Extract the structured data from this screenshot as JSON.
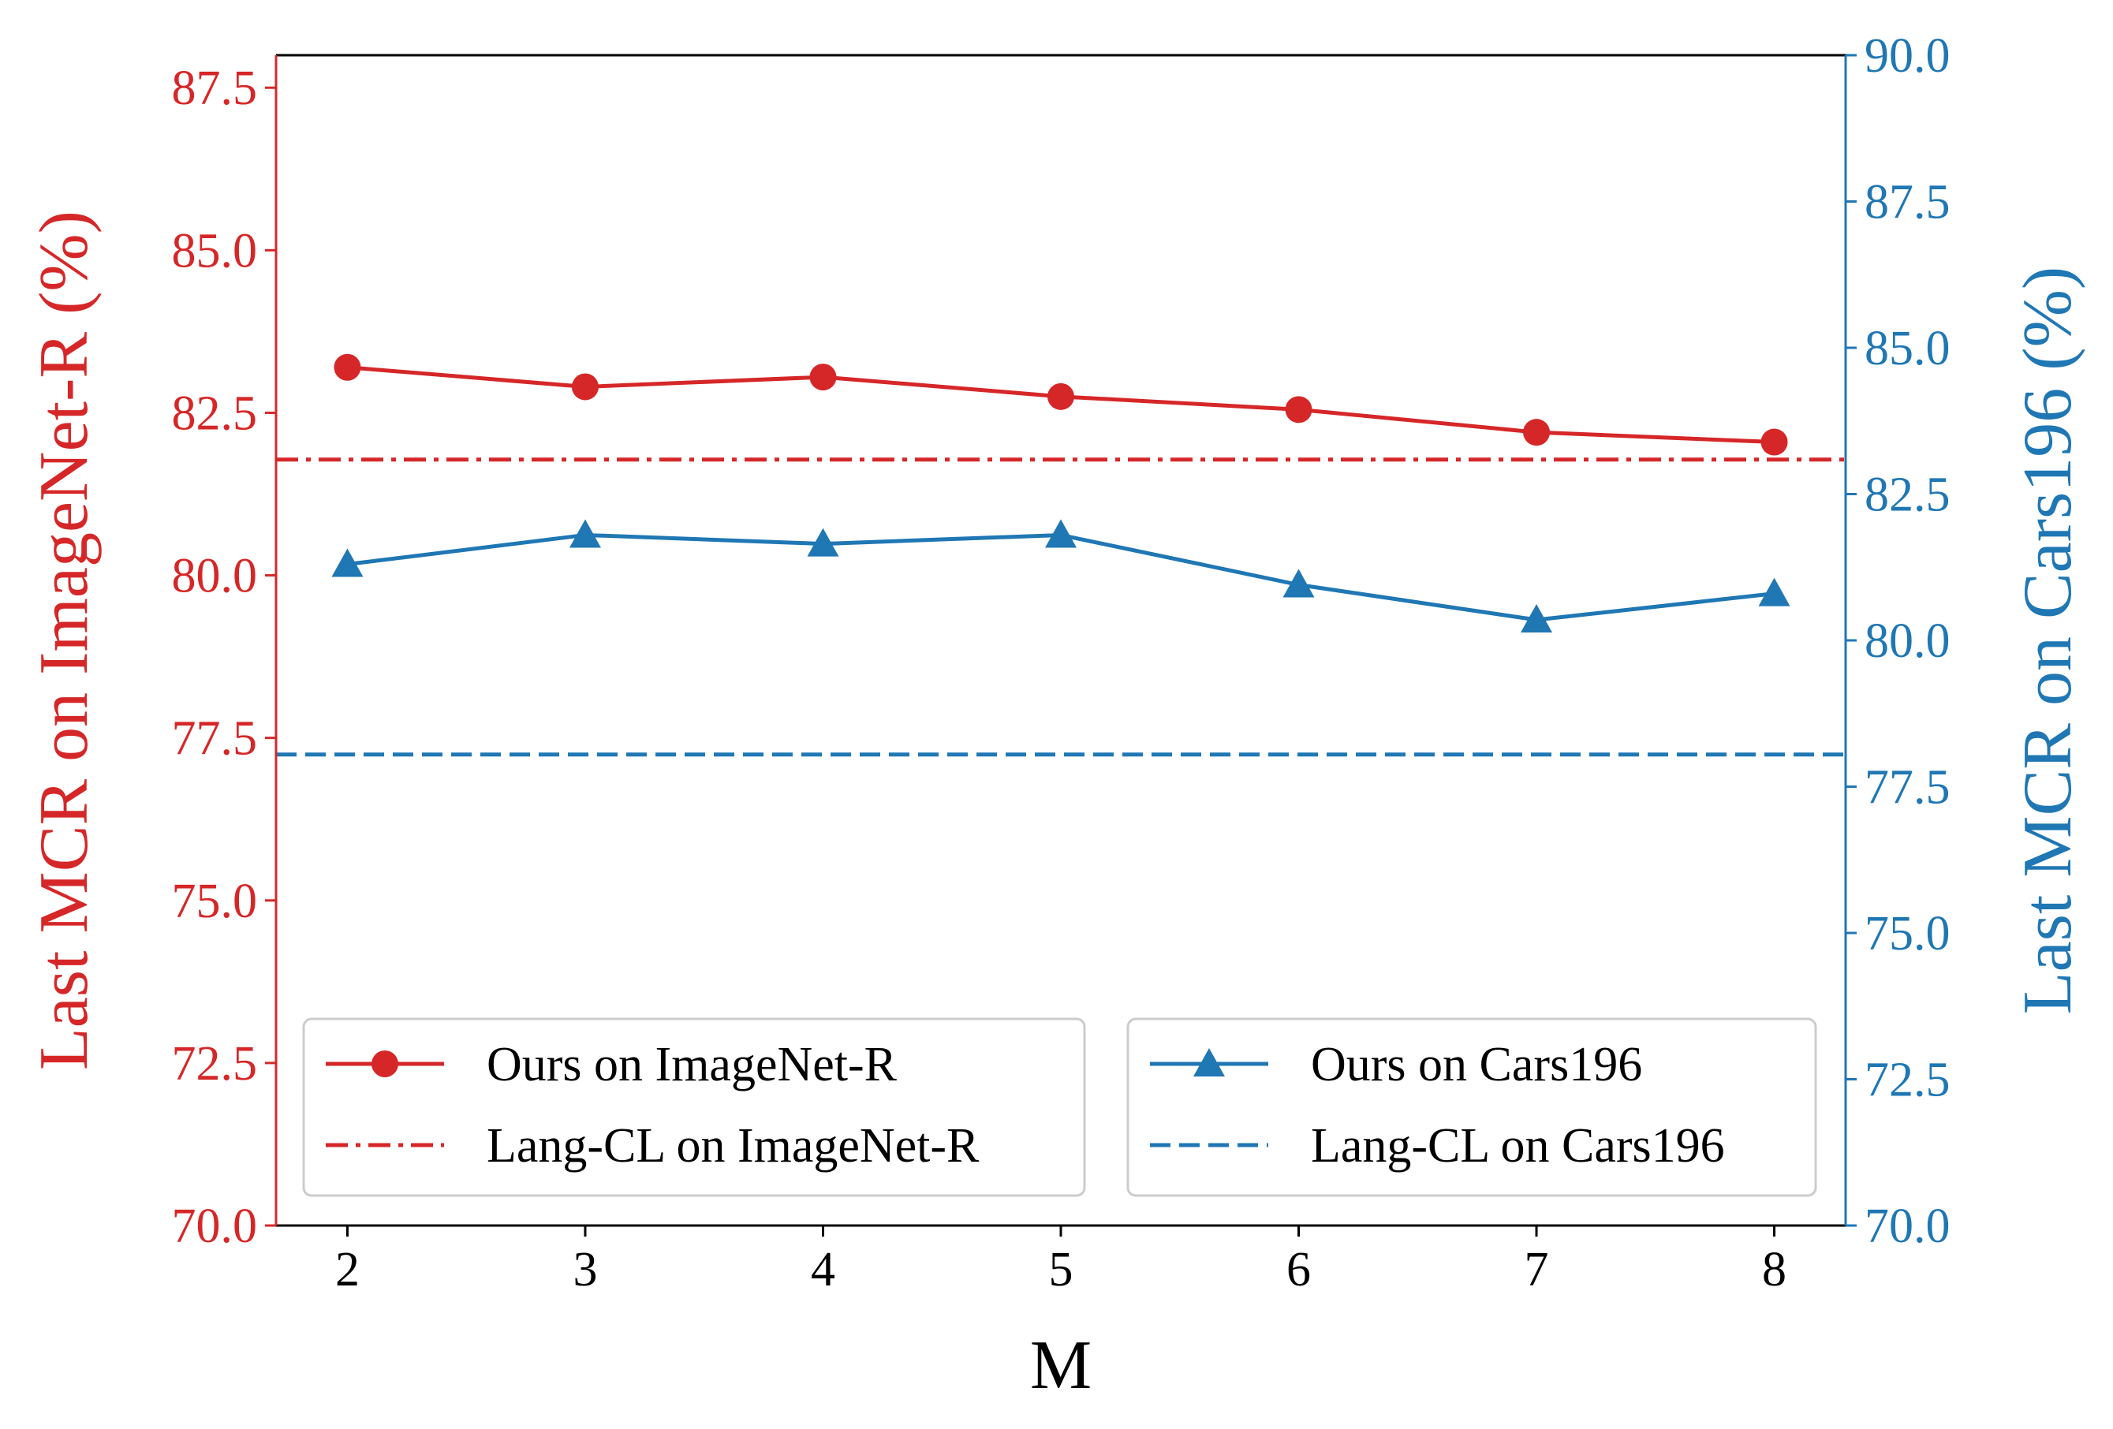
{
  "chart_data": {
    "type": "line",
    "title": "",
    "xlabel": "M",
    "ylabel_left": "Last MCR on ImageNet-R (%)",
    "ylabel_right": "Last MCR on Cars196 (%)",
    "x": [
      2,
      3,
      4,
      5,
      6,
      7,
      8
    ],
    "x_tick_labels": [
      "2",
      "3",
      "4",
      "5",
      "6",
      "7",
      "8"
    ],
    "xlim": [
      1.7,
      8.3
    ],
    "ylim_left": [
      70.0,
      88.0
    ],
    "ylim_right": [
      70.0,
      90.0
    ],
    "y_ticks_left": [
      "70.0",
      "72.5",
      "75.0",
      "77.5",
      "80.0",
      "82.5",
      "85.0",
      "87.5"
    ],
    "y_ticks_right": [
      "70.0",
      "72.5",
      "75.0",
      "77.5",
      "80.0",
      "82.5",
      "85.0",
      "87.5",
      "90.0"
    ],
    "colors": {
      "left_axis": "#d62728",
      "right_axis": "#1f77b4",
      "legend_border": "#cccccc"
    },
    "series": [
      {
        "name": "Ours on ImageNet-R",
        "axis": "left",
        "style": "solid",
        "marker": "circle",
        "color": "#d62728",
        "values": [
          83.2,
          82.9,
          83.05,
          82.75,
          82.55,
          82.2,
          82.05
        ]
      },
      {
        "name": "Lang-CL on ImageNet-R",
        "axis": "left",
        "style": "dashdot",
        "marker": "none",
        "color": "#d62728",
        "values": [
          81.78,
          81.78,
          81.78,
          81.78,
          81.78,
          81.78,
          81.78
        ]
      },
      {
        "name": "Ours on Cars196",
        "axis": "right",
        "style": "solid",
        "marker": "triangle",
        "color": "#1f77b4",
        "values": [
          81.3,
          81.8,
          81.65,
          81.8,
          80.95,
          80.35,
          80.8
        ]
      },
      {
        "name": "Lang-CL on Cars196",
        "axis": "right",
        "style": "dashed",
        "marker": "none",
        "color": "#1f77b4",
        "values": [
          78.05,
          78.05,
          78.05,
          78.05,
          78.05,
          78.05,
          78.05
        ]
      }
    ],
    "legends": [
      {
        "placement": "lower-left",
        "entries": [
          "Ours on ImageNet-R",
          "Lang-CL on ImageNet-R"
        ]
      },
      {
        "placement": "lower-right",
        "entries": [
          "Ours on Cars196",
          "Lang-CL on Cars196"
        ]
      }
    ],
    "grid": false
  }
}
